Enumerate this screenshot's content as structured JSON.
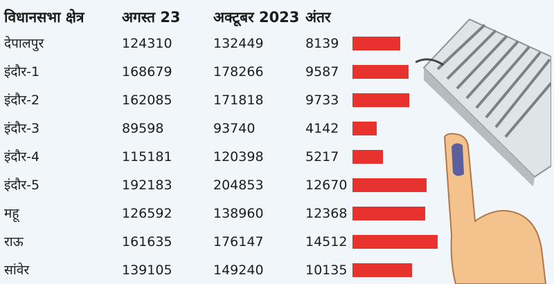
{
  "colors": {
    "bar": "#e8322e",
    "background": "#f1f6fa"
  },
  "chart_data": {
    "type": "bar",
    "columns": [
      "विधानसभा क्षेत्र",
      "अगस्त 23",
      "अक्टूबर 2023",
      "अंतर"
    ],
    "categories": [
      "देपालपुर",
      "इंदौर-1",
      "इंदौर-2",
      "इंदौर-3",
      "इंदौर-4",
      "इंदौर-5",
      "महू",
      "राऊ",
      "सांवेर"
    ],
    "august": [
      "124310",
      "168679",
      "162085",
      "89598",
      "115181",
      "192183",
      "126592",
      "161635",
      "139105"
    ],
    "october": [
      "132449",
      "178266",
      "171818",
      "93740",
      "120398",
      "204853",
      "138960",
      "176147",
      "149240"
    ],
    "difference": [
      "8139",
      "9587",
      "9733",
      "4142",
      "5217",
      "12670",
      "12368",
      "14512",
      "10135"
    ],
    "values": [
      8139,
      9587,
      9733,
      4142,
      5217,
      12670,
      12368,
      14512,
      10135
    ],
    "xlim": [
      0,
      14512
    ]
  }
}
